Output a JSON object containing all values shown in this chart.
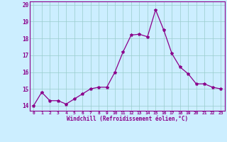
{
  "x": [
    0,
    1,
    2,
    3,
    4,
    5,
    6,
    7,
    8,
    9,
    10,
    11,
    12,
    13,
    14,
    15,
    16,
    17,
    18,
    19,
    20,
    21,
    22,
    23
  ],
  "y": [
    14.0,
    14.8,
    14.3,
    14.3,
    14.1,
    14.4,
    14.7,
    15.0,
    15.1,
    15.1,
    16.0,
    17.2,
    18.2,
    18.25,
    18.1,
    19.7,
    18.5,
    17.1,
    16.3,
    15.9,
    15.3,
    15.3,
    15.1,
    15.0
  ],
  "line_color": "#8B008B",
  "marker": "*",
  "marker_size": 3,
  "bg_color": "#cceeff",
  "grid_color": "#99cccc",
  "xlabel": "Windchill (Refroidissement éolien,°C)",
  "xlabel_color": "#8B008B",
  "tick_color": "#8B008B",
  "ylim": [
    13.7,
    20.2
  ],
  "yticks": [
    14,
    15,
    16,
    17,
    18,
    19,
    20
  ],
  "xticks": [
    0,
    1,
    2,
    3,
    4,
    5,
    6,
    7,
    8,
    9,
    10,
    11,
    12,
    13,
    14,
    15,
    16,
    17,
    18,
    19,
    20,
    21,
    22,
    23
  ],
  "linewidth": 0.9
}
